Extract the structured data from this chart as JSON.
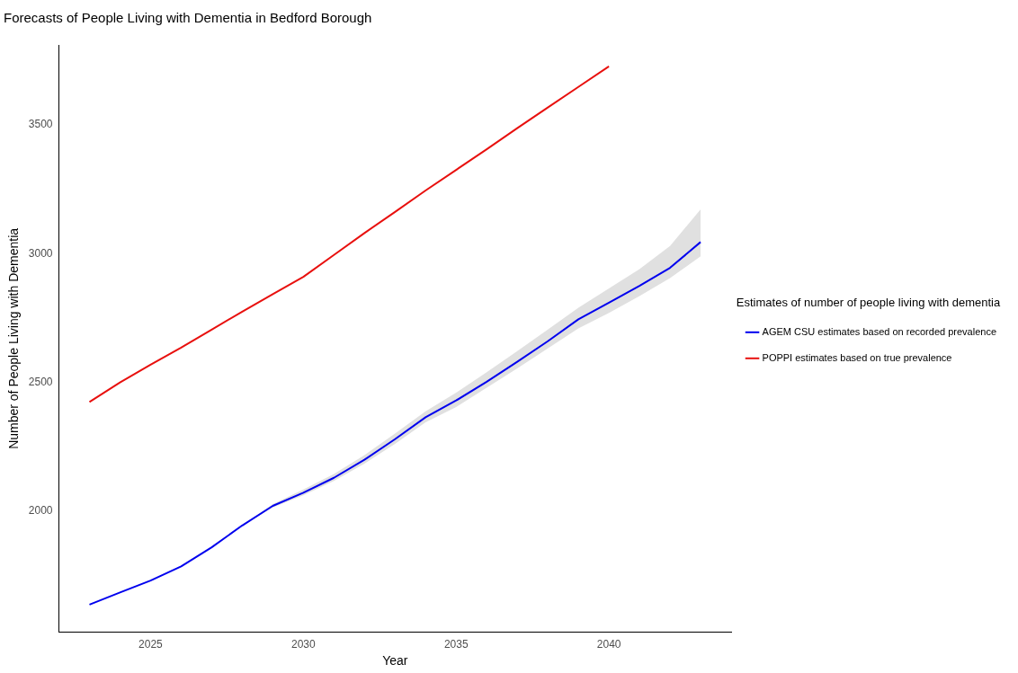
{
  "chart_data": {
    "type": "line",
    "title": "Forecasts of People Living with Dementia in Bedford Borough",
    "xlabel": "Year",
    "ylabel": "Number of People Living with Dementia",
    "legend_title": "Estimates of number of people living with dementia",
    "legend": "right",
    "grid": false,
    "marker": "none",
    "line_style": "solid",
    "xlim": [
      2022,
      2044
    ],
    "xticks": [
      2025,
      2030,
      2035,
      2040
    ],
    "ylim": [
      1530,
      3810
    ],
    "yticks": [
      2000,
      2500,
      3000,
      3500
    ],
    "series": [
      {
        "name": "AGEM CSU estimates based on recorded prevalence",
        "color": "#0000ee",
        "x": [
          2023,
          2024,
          2025,
          2026,
          2027,
          2028,
          2029,
          2030,
          2031,
          2032,
          2033,
          2034,
          2035,
          2036,
          2037,
          2038,
          2039,
          2040,
          2041,
          2042,
          2043
        ],
        "values": [
          1638,
          1685,
          1731,
          1786,
          1860,
          1945,
          2021,
          2072,
          2130,
          2200,
          2280,
          2365,
          2430,
          2503,
          2580,
          2660,
          2745,
          2810,
          2875,
          2945,
          3045
        ],
        "lower": [
          1638,
          1685,
          1731,
          1786,
          1860,
          1945,
          2015,
          2062,
          2118,
          2185,
          2262,
          2345,
          2405,
          2480,
          2555,
          2632,
          2710,
          2770,
          2835,
          2905,
          2990
        ],
        "upper": [
          1638,
          1685,
          1731,
          1786,
          1860,
          1945,
          2028,
          2085,
          2145,
          2218,
          2302,
          2388,
          2460,
          2540,
          2622,
          2705,
          2790,
          2865,
          2940,
          3030,
          3172
        ]
      },
      {
        "name": "POPPI estimates based on true prevalence",
        "color": "#e8100e",
        "x": [
          2023,
          2024,
          2025,
          2026,
          2027,
          2028,
          2029,
          2030,
          2031,
          2032,
          2033,
          2034,
          2035,
          2036,
          2037,
          2038,
          2039,
          2040
        ],
        "values": [
          2424,
          2500,
          2569,
          2635,
          2705,
          2775,
          2843,
          2910,
          2995,
          3080,
          3162,
          3245,
          3325,
          3405,
          3487,
          3567,
          3647,
          3727
        ]
      }
    ]
  }
}
